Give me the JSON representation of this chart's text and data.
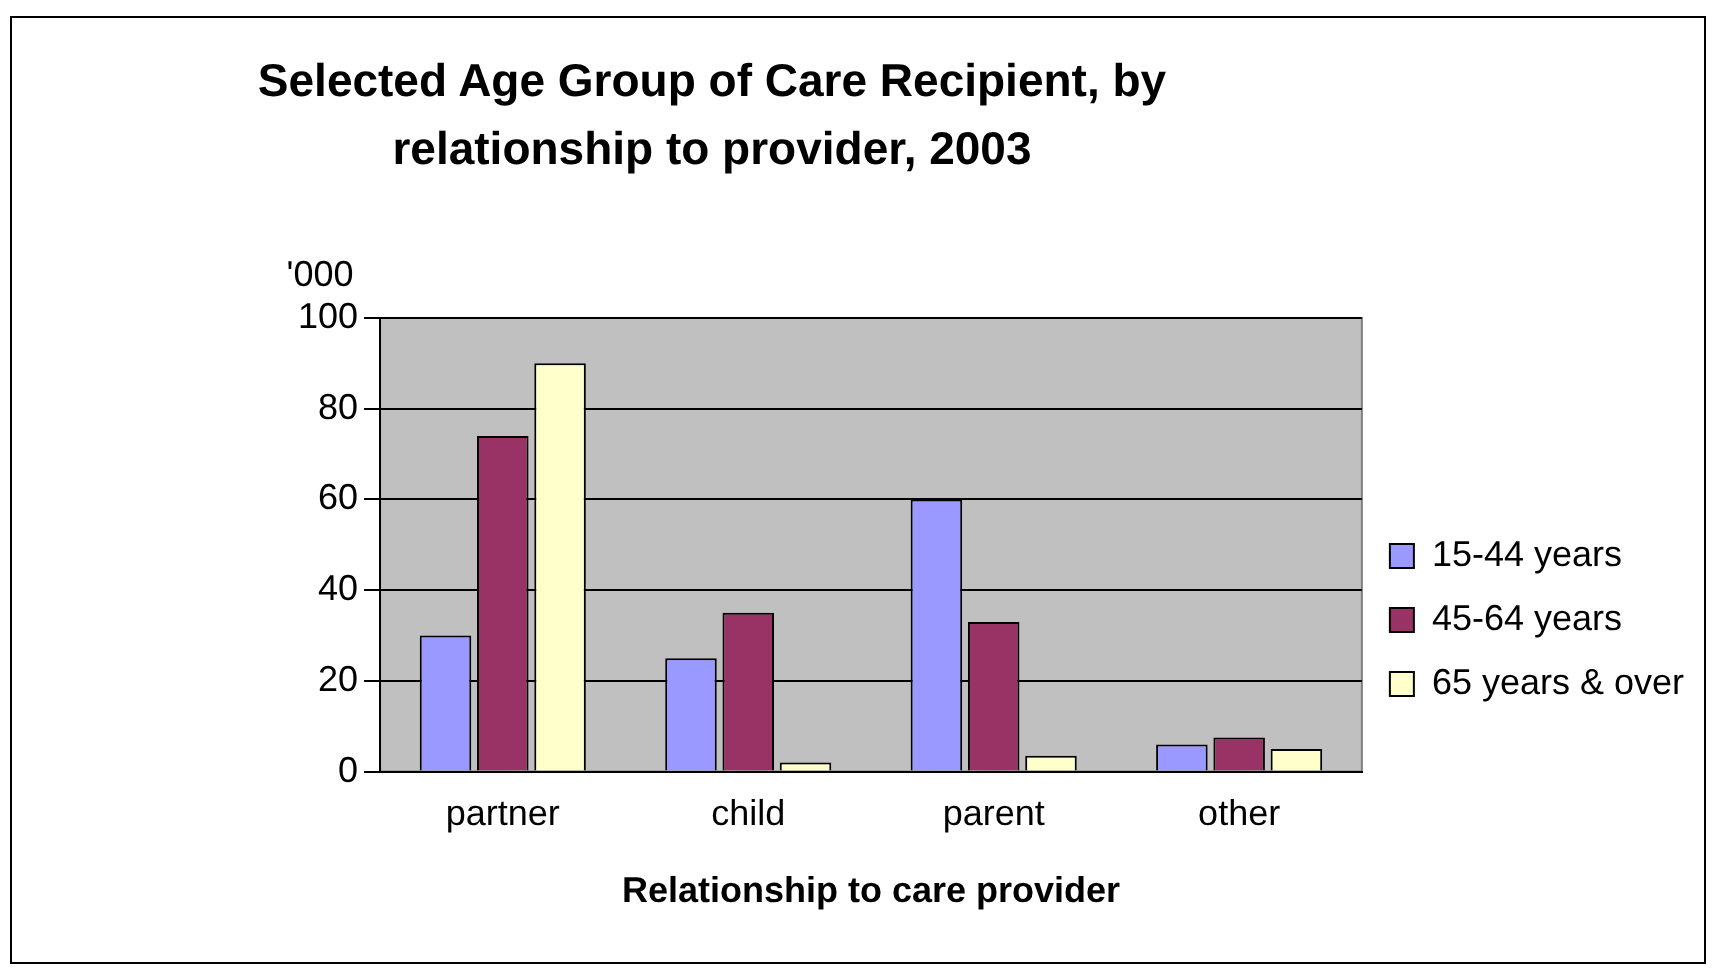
{
  "chart_data": {
    "type": "bar",
    "title": "Selected Age Group of Care Recipient, by relationship to provider, 2003",
    "xlabel": "Relationship to care provider",
    "ylabel": "'000",
    "categories": [
      "partner",
      "child",
      "parent",
      "other"
    ],
    "series": [
      {
        "name": "15-44 years",
        "color": "#9999ff",
        "values": [
          30,
          25,
          60,
          6
        ]
      },
      {
        "name": "45-64 years",
        "color": "#993366",
        "values": [
          74,
          35,
          33,
          7.5
        ]
      },
      {
        "name": "65 years & over",
        "color": "#ffffcc",
        "values": [
          90,
          2,
          3.5,
          5
        ]
      }
    ],
    "ylim": [
      0,
      100
    ],
    "yticks": [
      0,
      20,
      40,
      60,
      80,
      100
    ],
    "grid": "y",
    "legend": "right"
  }
}
